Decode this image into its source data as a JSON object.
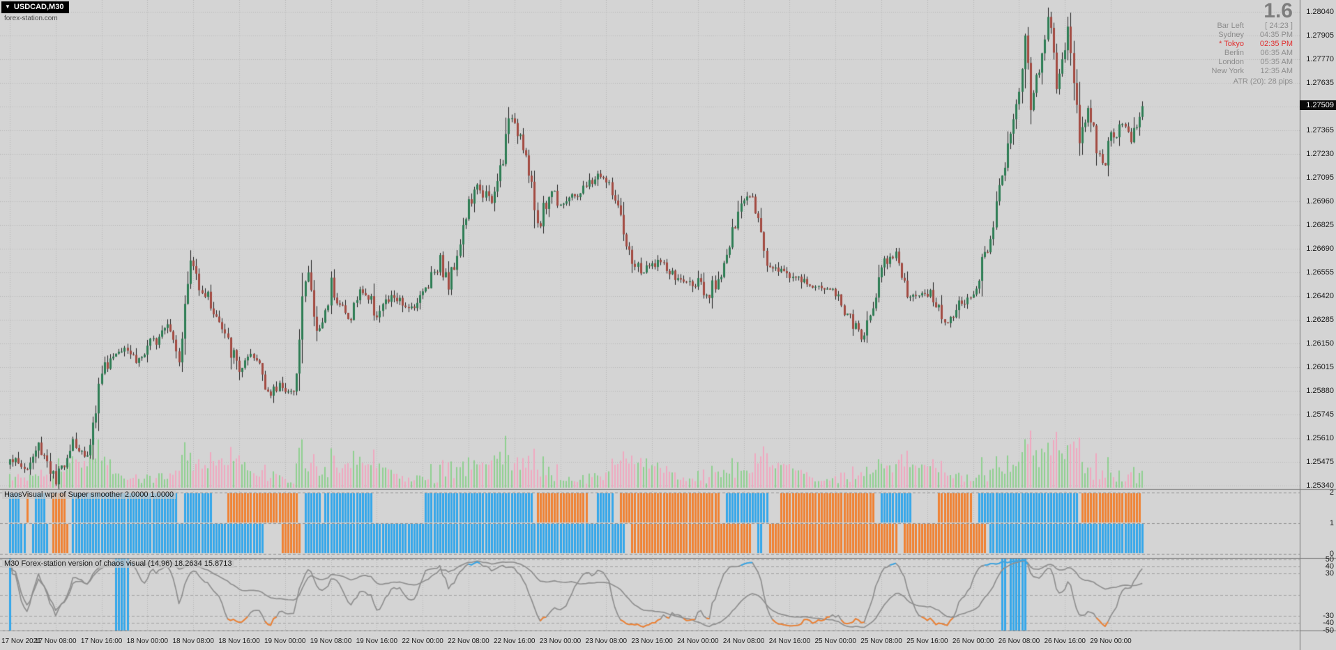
{
  "window": {
    "symbol": "USDCAD,M30",
    "watermark": "forex-station.com",
    "dropdown_glyph": "▼"
  },
  "overlay": {
    "big_number": "1.6",
    "rows": [
      {
        "label": "Bar Left",
        "value": "[ 24:23 ]",
        "highlight": false
      },
      {
        "label": "Sydney",
        "value": "04:35 PM",
        "highlight": false
      },
      {
        "label": "* Tokyo",
        "value": "02:35 PM",
        "highlight": true
      },
      {
        "label": "Berlin",
        "value": "06:35 AM",
        "highlight": false
      },
      {
        "label": "London",
        "value": "05:35 AM",
        "highlight": false
      },
      {
        "label": "New York",
        "value": "12:35 AM",
        "highlight": false
      }
    ],
    "atr": "ATR (20): 28 pips"
  },
  "price_axis": {
    "current": "1.27509",
    "labels": [
      "1.28040",
      "1.27905",
      "1.27770",
      "1.27635",
      "1.27500",
      "1.27365",
      "1.27230",
      "1.27095",
      "1.26960",
      "1.26825",
      "1.26690",
      "1.26555",
      "1.26420",
      "1.26285",
      "1.26150",
      "1.26015",
      "1.25880",
      "1.25745",
      "1.25610",
      "1.25475",
      "1.25340"
    ]
  },
  "time_axis": {
    "labels": [
      "17 Nov 2021",
      "17 Nov 08:00",
      "17 Nov 16:00",
      "18 Nov 00:00",
      "18 Nov 08:00",
      "18 Nov 16:00",
      "19 Nov 00:00",
      "19 Nov 08:00",
      "19 Nov 16:00",
      "22 Nov 00:00",
      "22 Nov 08:00",
      "22 Nov 16:00",
      "23 Nov 00:00",
      "23 Nov 08:00",
      "23 Nov 16:00",
      "24 Nov 00:00",
      "24 Nov 08:00",
      "24 Nov 16:00",
      "25 Nov 00:00",
      "25 Nov 08:00",
      "25 Nov 16:00",
      "26 Nov 00:00",
      "26 Nov 08:00",
      "26 Nov 16:00",
      "29 Nov 00:00"
    ]
  },
  "panels": [
    {
      "title": "HaosVisual wpr of Super smoother 2.0000 1.0000",
      "levels": [
        "2",
        "1",
        "0"
      ]
    },
    {
      "title": "M30 Forex-station version of chaos visual (14,96) 18.2634 15.8713",
      "levels": [
        "50",
        "40",
        "30",
        "-30",
        "-40",
        "-50"
      ]
    }
  ],
  "chart_data": [
    {
      "type": "candlestick",
      "symbol": "USDCAD",
      "timeframe": "M30",
      "bars": 396,
      "bars_per_day": 48,
      "y_min": 1.2534,
      "y_max": 1.2804,
      "grid_interval": 0.00135,
      "current_price": 1.27509,
      "colors": {
        "up": "#2e7d54",
        "down": "#a34b42",
        "wick": "#1f1f1f"
      },
      "close_anchors": [
        [
          0,
          1.2551
        ],
        [
          3,
          1.2546
        ],
        [
          6,
          1.2543
        ],
        [
          10,
          1.2557
        ],
        [
          13,
          1.2549
        ],
        [
          16,
          1.2534
        ],
        [
          19,
          1.2549
        ],
        [
          22,
          1.2561
        ],
        [
          26,
          1.2548
        ],
        [
          29,
          1.2568
        ],
        [
          32,
          1.26
        ],
        [
          36,
          1.2608
        ],
        [
          40,
          1.2616
        ],
        [
          44,
          1.2605
        ],
        [
          48,
          1.261
        ],
        [
          52,
          1.2622
        ],
        [
          55,
          1.263
        ],
        [
          59,
          1.2608
        ],
        [
          63,
          1.2662
        ],
        [
          66,
          1.265
        ],
        [
          70,
          1.2638
        ],
        [
          75,
          1.2618
        ],
        [
          80,
          1.26
        ],
        [
          84,
          1.2607
        ],
        [
          87,
          1.2604
        ],
        [
          91,
          1.2584
        ],
        [
          94,
          1.2592
        ],
        [
          96,
          1.259
        ],
        [
          99,
          1.2583
        ],
        [
          102,
          1.2642
        ],
        [
          104,
          1.2655
        ],
        [
          107,
          1.262
        ],
        [
          110,
          1.2632
        ],
        [
          112,
          1.265
        ],
        [
          115,
          1.2638
        ],
        [
          118,
          1.2628
        ],
        [
          121,
          1.264
        ],
        [
          123,
          1.2646
        ],
        [
          126,
          1.2638
        ],
        [
          128,
          1.2632
        ],
        [
          131,
          1.2638
        ],
        [
          134,
          1.2642
        ],
        [
          137,
          1.2636
        ],
        [
          140,
          1.2636
        ],
        [
          144,
          1.2643
        ],
        [
          147,
          1.2655
        ],
        [
          150,
          1.2662
        ],
        [
          153,
          1.2648
        ],
        [
          156,
          1.2668
        ],
        [
          160,
          1.2694
        ],
        [
          164,
          1.2705
        ],
        [
          168,
          1.2693
        ],
        [
          172,
          1.2722
        ],
        [
          175,
          1.2747
        ],
        [
          179,
          1.273
        ],
        [
          184,
          1.2683
        ],
        [
          189,
          1.2703
        ],
        [
          192,
          1.2695
        ],
        [
          198,
          1.27
        ],
        [
          206,
          1.2712
        ],
        [
          211,
          1.2698
        ],
        [
          215,
          1.2668
        ],
        [
          220,
          1.2655
        ],
        [
          226,
          1.2662
        ],
        [
          232,
          1.2652
        ],
        [
          240,
          1.2648
        ],
        [
          243,
          1.2638
        ],
        [
          250,
          1.2665
        ],
        [
          256,
          1.2698
        ],
        [
          259,
          1.2703
        ],
        [
          264,
          1.266
        ],
        [
          271,
          1.2655
        ],
        [
          279,
          1.2648
        ],
        [
          288,
          1.2645
        ],
        [
          294,
          1.2625
        ],
        [
          298,
          1.2618
        ],
        [
          304,
          1.266
        ],
        [
          309,
          1.2668
        ],
        [
          313,
          1.264
        ],
        [
          320,
          1.2645
        ],
        [
          326,
          1.2628
        ],
        [
          332,
          1.2638
        ],
        [
          336,
          1.2641
        ],
        [
          342,
          1.2678
        ],
        [
          347,
          1.2718
        ],
        [
          352,
          1.276
        ],
        [
          354,
          1.279
        ],
        [
          356,
          1.2752
        ],
        [
          360,
          1.2782
        ],
        [
          362,
          1.2804
        ],
        [
          365,
          1.2762
        ],
        [
          368,
          1.2785
        ],
        [
          369,
          1.2799
        ],
        [
          373,
          1.2732
        ],
        [
          376,
          1.2748
        ],
        [
          381,
          1.2716
        ],
        [
          384,
          1.2731
        ],
        [
          388,
          1.2742
        ],
        [
          391,
          1.2728
        ],
        [
          394,
          1.2746
        ],
        [
          395,
          1.2751
        ]
      ]
    },
    {
      "type": "bar",
      "name": "volume",
      "colors": {
        "up": "#8fcf90",
        "down": "#f0a8c0"
      }
    },
    {
      "type": "bar",
      "name": "HaosVisual wpr of Super smoother",
      "params": "2.0000 1.0000",
      "levels": [
        2,
        1,
        0
      ],
      "colors": {
        "up": "#35a7ea",
        "down": "#f08233"
      }
    },
    {
      "type": "line",
      "name": "Forex-station version of chaos visual",
      "params": "(14,96)",
      "values": [
        18.2634,
        15.8713
      ],
      "levels": [
        50,
        40,
        30,
        -30,
        -40,
        -50
      ],
      "colors": {
        "line": "#8f8f8f",
        "up": "#35a7ea",
        "down": "#f08233"
      }
    }
  ]
}
